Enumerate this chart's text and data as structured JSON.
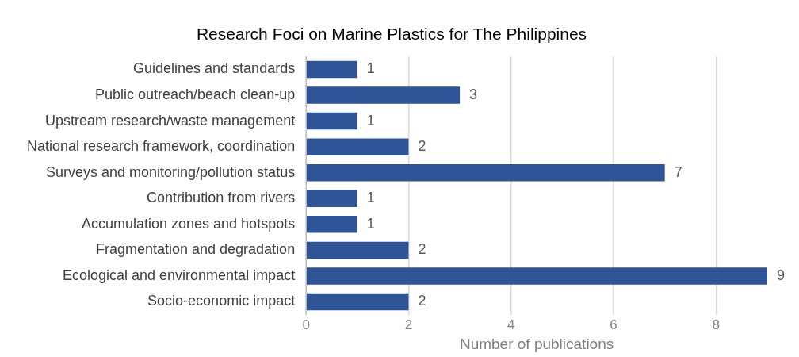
{
  "chart_data": {
    "type": "bar",
    "orientation": "horizontal",
    "title": "Research Foci on Marine Plastics for The Philippines",
    "xlabel": "Number of publications",
    "categories": [
      "Guidelines and standards",
      "Public outreach/beach clean-up",
      "Upstream research/waste management",
      "National research framework, coordination",
      "Surveys and monitoring/pollution status",
      "Contribution from rivers",
      "Accumulation zones and hotspots",
      "Fragmentation and degradation",
      "Ecological and environmental impact",
      "Socio-economic impact"
    ],
    "values": [
      1,
      3,
      1,
      2,
      7,
      1,
      1,
      2,
      9,
      2
    ],
    "color": "#2f5597",
    "xlim": [
      0,
      9
    ],
    "xticks": [
      0,
      2,
      4,
      6,
      8
    ],
    "grid": "x",
    "data_labels": true,
    "legend": false
  }
}
